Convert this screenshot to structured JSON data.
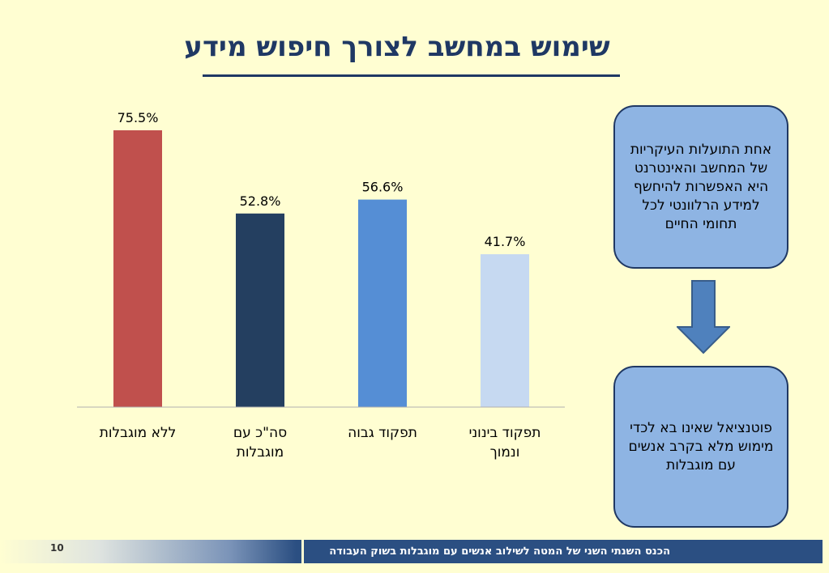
{
  "title": "שימוש במחשב לצורך חיפוש מידע",
  "chart_data": {
    "type": "bar",
    "categories": [
      [
        "ללא מוגבלות"
      ],
      [
        "סה\"כ עם",
        "מוגבלות"
      ],
      [
        "תפקוד גבוה"
      ],
      [
        "תפקוד בינוני",
        "ונמוך"
      ]
    ],
    "values": [
      75.5,
      52.8,
      56.6,
      41.7
    ],
    "value_labels": [
      "75.5%",
      "52.8%",
      "56.6%",
      "41.7%"
    ],
    "colors": [
      "#c0504d",
      "#243f60",
      "#558ed5",
      "#c6d9f1"
    ],
    "ylim": [
      0,
      100
    ],
    "grid": false,
    "legend": "none"
  },
  "callouts": {
    "top": "אחת התועלות העיקריות של המחשב והאינטרנט היא האפשרות להיחשף למידע הרלוונטי לכל תחומי החיים",
    "bottom": "פוטנציאל שאינו בא לכדי מימוש מלא בקרב אנשים עם מוגבלות"
  },
  "arrow_icon": "down-arrow-icon",
  "footer": {
    "text": "הכנס השנתי השני של המטה לשילוב אנשים עם מוגבלות בשוק העבודה",
    "page_number": "10"
  }
}
